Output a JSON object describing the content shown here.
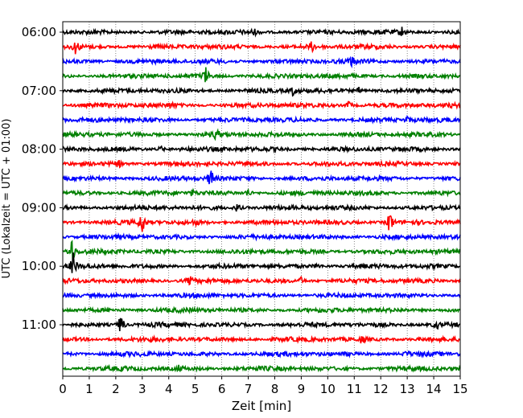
{
  "chart_data": {
    "type": "line",
    "title": "",
    "xlabel": "Zeit  [min]",
    "ylabel": "UTC (Lokalzeit = UTC + 01:00)",
    "xlim": [
      0,
      15
    ],
    "x_ticks": [
      0,
      1,
      2,
      3,
      4,
      5,
      6,
      7,
      8,
      9,
      10,
      11,
      12,
      13,
      14,
      15
    ],
    "grid": "vertical dotted",
    "y_ticks": [
      "06:00",
      "07:00",
      "08:00",
      "09:00",
      "10:00",
      "11:00"
    ],
    "trace_start_times": [
      "06:00",
      "06:15",
      "06:30",
      "06:45",
      "07:00",
      "07:15",
      "07:30",
      "07:45",
      "08:00",
      "08:15",
      "08:30",
      "08:45",
      "09:00",
      "09:15",
      "09:30",
      "09:45",
      "10:00",
      "10:15",
      "10:30",
      "10:45",
      "11:00",
      "11:15",
      "11:30",
      "11:45"
    ],
    "trace_colors": [
      "#000000",
      "#ff0000",
      "#0000ff",
      "#008000"
    ],
    "events": [
      {
        "trace": 0,
        "minute": 7.2,
        "amp": 0.35
      },
      {
        "trace": 0,
        "minute": 12.8,
        "amp": 0.45
      },
      {
        "trace": 1,
        "minute": 0.5,
        "amp": 0.8
      },
      {
        "trace": 1,
        "minute": 9.4,
        "amp": 0.5
      },
      {
        "trace": 2,
        "minute": 10.9,
        "amp": 0.5
      },
      {
        "trace": 3,
        "minute": 5.4,
        "amp": 0.9
      },
      {
        "trace": 4,
        "minute": 8.7,
        "amp": 0.5
      },
      {
        "trace": 4,
        "minute": 11.2,
        "amp": 0.4
      },
      {
        "trace": 5,
        "minute": 4.1,
        "amp": 0.3
      },
      {
        "trace": 5,
        "minute": 10.8,
        "amp": 0.45
      },
      {
        "trace": 6,
        "minute": 13.0,
        "amp": 0.25
      },
      {
        "trace": 7,
        "minute": 5.8,
        "amp": 0.6
      },
      {
        "trace": 8,
        "minute": 3.7,
        "amp": 0.3
      },
      {
        "trace": 9,
        "minute": 2.1,
        "amp": 0.35
      },
      {
        "trace": 10,
        "minute": 5.6,
        "amp": 1.2
      },
      {
        "trace": 11,
        "minute": 7.0,
        "amp": 0.45
      },
      {
        "trace": 11,
        "minute": 4.9,
        "amp": 0.3
      },
      {
        "trace": 12,
        "minute": 6.6,
        "amp": 0.55
      },
      {
        "trace": 13,
        "minute": 3.0,
        "amp": 1.3
      },
      {
        "trace": 13,
        "minute": 12.35,
        "amp": 1.5
      },
      {
        "trace": 13,
        "minute": 5.0,
        "amp": 0.3
      },
      {
        "trace": 15,
        "minute": 0.35,
        "amp": 1.6
      },
      {
        "trace": 16,
        "minute": 0.4,
        "amp": 1.2
      },
      {
        "trace": 16,
        "minute": 9.6,
        "amp": 0.35
      },
      {
        "trace": 17,
        "minute": 4.8,
        "amp": 0.45
      },
      {
        "trace": 17,
        "minute": 9.0,
        "amp": 0.35
      },
      {
        "trace": 20,
        "minute": 2.2,
        "amp": 1.4
      },
      {
        "trace": 20,
        "minute": 14.1,
        "amp": 0.45
      },
      {
        "trace": 21,
        "minute": 11.3,
        "amp": 0.4
      },
      {
        "trace": 22,
        "minute": 13.0,
        "amp": 0.3
      },
      {
        "trace": 23,
        "minute": 4.4,
        "amp": 0.35
      }
    ]
  }
}
